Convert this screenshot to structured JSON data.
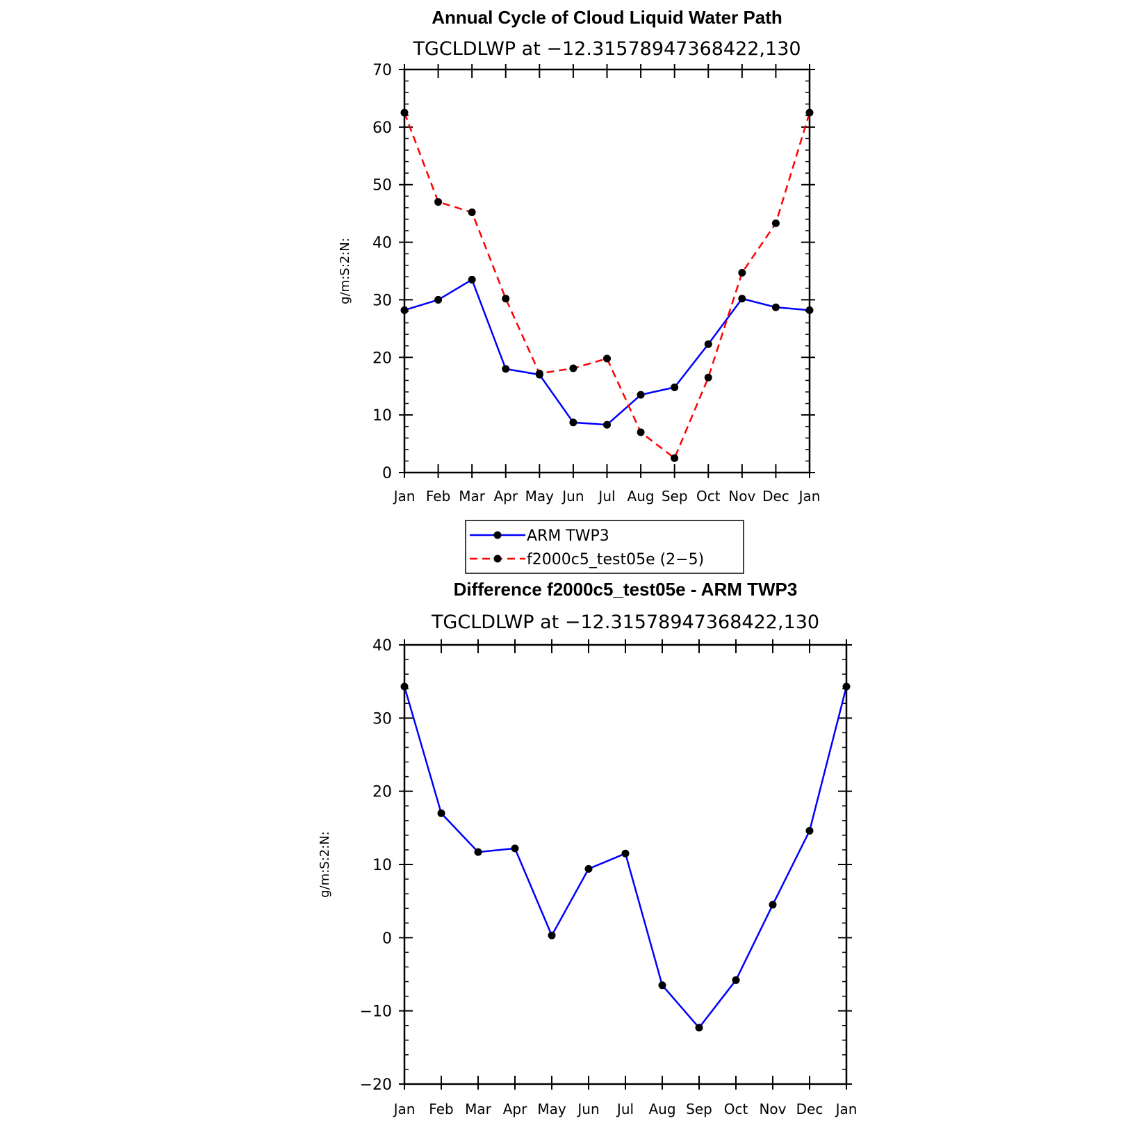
{
  "chart_data": [
    {
      "type": "line",
      "title": "Annual Cycle of Cloud Liquid Water Path",
      "subtitle": "TGCLDLWP at −12.31578947368422,130",
      "ylabel": "g/m:S:2:N:",
      "xlabel": "",
      "categories": [
        "Jan",
        "Feb",
        "Mar",
        "Apr",
        "May",
        "Jun",
        "Jul",
        "Aug",
        "Sep",
        "Oct",
        "Nov",
        "Dec",
        "Jan"
      ],
      "ylim": [
        0,
        70
      ],
      "yticks": [
        0,
        10,
        20,
        30,
        40,
        50,
        60,
        70
      ],
      "ytick_labels": [
        "0",
        "10",
        "20",
        "30",
        "40",
        "50",
        "60",
        "70"
      ],
      "series": [
        {
          "name": "ARM TWP3",
          "color": "#0000ff",
          "dash": "solid",
          "values": [
            28.2,
            30.0,
            33.5,
            18.0,
            17.0,
            8.7,
            8.3,
            13.5,
            14.8,
            22.3,
            30.2,
            28.7,
            28.2
          ]
        },
        {
          "name": "f2000c5_test05e (2−5)",
          "color": "#ff0000",
          "dash": "dashed",
          "values": [
            62.5,
            47.0,
            45.2,
            30.2,
            17.2,
            18.1,
            19.8,
            7.0,
            2.5,
            16.5,
            34.7,
            43.3,
            62.5
          ]
        }
      ],
      "legend": {
        "position": "bottom-center",
        "entries": [
          "ARM TWP3",
          "f2000c5_test05e (2−5)"
        ]
      }
    },
    {
      "type": "line",
      "title": "Difference f2000c5_test05e - ARM TWP3",
      "subtitle": "TGCLDLWP at −12.31578947368422,130",
      "ylabel": "g/m:S:2:N:",
      "xlabel": "",
      "categories": [
        "Jan",
        "Feb",
        "Mar",
        "Apr",
        "May",
        "Jun",
        "Jul",
        "Aug",
        "Sep",
        "Oct",
        "Nov",
        "Dec",
        "Jan"
      ],
      "ylim": [
        -20,
        40
      ],
      "yticks": [
        -20,
        -10,
        0,
        10,
        20,
        30,
        40
      ],
      "ytick_labels": [
        "−20",
        "−10",
        "0",
        "10",
        "20",
        "30",
        "40"
      ],
      "series": [
        {
          "name": "Difference",
          "color": "#0000ff",
          "dash": "solid",
          "values": [
            34.3,
            17.0,
            11.7,
            12.2,
            0.3,
            9.4,
            11.5,
            -6.5,
            -12.3,
            -5.8,
            4.5,
            14.6,
            34.3
          ]
        }
      ]
    }
  ]
}
